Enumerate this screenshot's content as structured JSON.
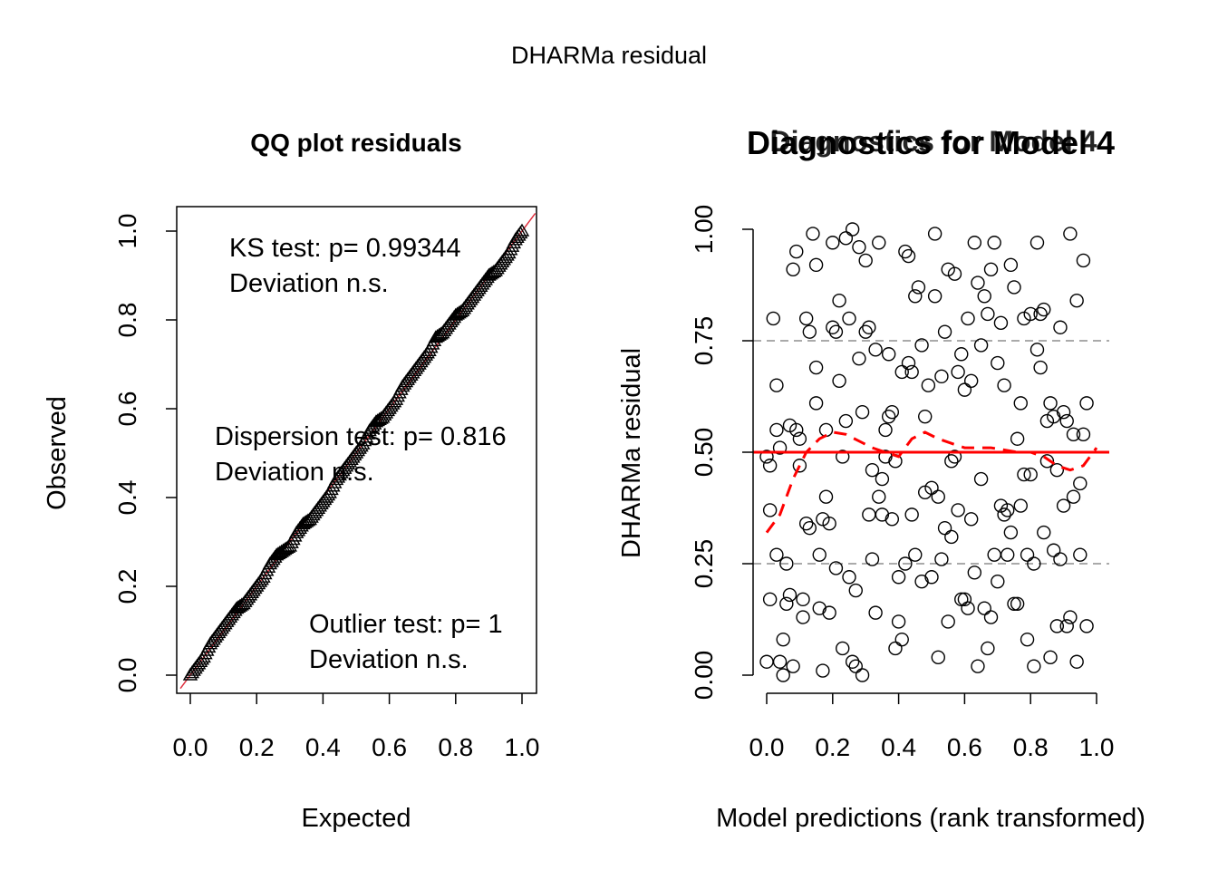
{
  "suptitle": "DHARMa residual",
  "chart_data": [
    {
      "type": "scatter",
      "panel": "qq",
      "title": "QQ plot residuals",
      "xlabel": "Expected",
      "ylabel": "Observed",
      "xlim": [
        0,
        1
      ],
      "ylim": [
        0,
        1
      ],
      "x_ticks": [
        "0.0",
        "0.2",
        "0.4",
        "0.6",
        "0.8",
        "1.0"
      ],
      "y_ticks": [
        "0.0",
        "0.2",
        "0.4",
        "0.6",
        "0.8",
        "1.0"
      ],
      "series": [
        {
          "marker": "triangle",
          "x": [
            0.0,
            0.02,
            0.04,
            0.06,
            0.08,
            0.1,
            0.12,
            0.14,
            0.16,
            0.18,
            0.2,
            0.22,
            0.24,
            0.26,
            0.28,
            0.3,
            0.32,
            0.34,
            0.36,
            0.38,
            0.4,
            0.42,
            0.44,
            0.46,
            0.48,
            0.5,
            0.52,
            0.54,
            0.56,
            0.58,
            0.6,
            0.62,
            0.64,
            0.66,
            0.68,
            0.7,
            0.72,
            0.74,
            0.76,
            0.78,
            0.8,
            0.82,
            0.84,
            0.86,
            0.88,
            0.9,
            0.92,
            0.94,
            0.96,
            0.98,
            1.0
          ],
          "y": [
            0.0,
            0.02,
            0.04,
            0.07,
            0.09,
            0.11,
            0.13,
            0.15,
            0.16,
            0.18,
            0.2,
            0.22,
            0.25,
            0.27,
            0.28,
            0.29,
            0.32,
            0.34,
            0.35,
            0.37,
            0.39,
            0.41,
            0.44,
            0.46,
            0.48,
            0.5,
            0.52,
            0.55,
            0.57,
            0.58,
            0.6,
            0.62,
            0.65,
            0.67,
            0.69,
            0.71,
            0.73,
            0.76,
            0.77,
            0.79,
            0.81,
            0.82,
            0.84,
            0.86,
            0.88,
            0.9,
            0.91,
            0.93,
            0.95,
            0.98,
            1.0
          ]
        }
      ],
      "reference_line": {
        "label": "",
        "color": "#e0303f"
      },
      "annotations": [
        {
          "line1": "KS test: p= 0.99344",
          "line2": "Deviation  n.s."
        },
        {
          "line1": "Dispersion test: p= 0.816",
          "line2": "Deviation  n.s."
        },
        {
          "line1": "Outlier test: p= 1",
          "line2": "Deviation  n.s."
        }
      ]
    },
    {
      "type": "scatter",
      "panel": "residuals",
      "title": "Diagnostics for Model 4",
      "overlay_title": "Diagnostics for Model 4",
      "xlabel": "Model predictions (rank transformed)",
      "ylabel": "DHARMa residual",
      "xlim": [
        0,
        1
      ],
      "ylim": [
        0,
        1
      ],
      "x_ticks": [
        "0.0",
        "0.2",
        "0.4",
        "0.6",
        "0.8",
        "1.0"
      ],
      "y_ticks": [
        "0.00",
        "0.25",
        "0.50",
        "0.75",
        "1.00"
      ],
      "hlines": [
        0.25,
        0.5,
        0.75
      ],
      "series": [
        {
          "marker": "circle",
          "points": [
            [
              0.0,
              0.03
            ],
            [
              0.0,
              0.49
            ],
            [
              0.01,
              0.37
            ],
            [
              0.01,
              0.17
            ],
            [
              0.01,
              0.47
            ],
            [
              0.02,
              0.8
            ],
            [
              0.03,
              0.65
            ],
            [
              0.03,
              0.55
            ],
            [
              0.03,
              0.27
            ],
            [
              0.04,
              0.03
            ],
            [
              0.04,
              0.51
            ],
            [
              0.05,
              0.0
            ],
            [
              0.05,
              0.08
            ],
            [
              0.06,
              0.25
            ],
            [
              0.06,
              0.16
            ],
            [
              0.07,
              0.56
            ],
            [
              0.07,
              0.18
            ],
            [
              0.08,
              0.91
            ],
            [
              0.08,
              0.02
            ],
            [
              0.09,
              0.95
            ],
            [
              0.09,
              0.55
            ],
            [
              0.1,
              0.53
            ],
            [
              0.1,
              0.47
            ],
            [
              0.11,
              0.13
            ],
            [
              0.11,
              0.17
            ],
            [
              0.12,
              0.8
            ],
            [
              0.12,
              0.34
            ],
            [
              0.13,
              0.33
            ],
            [
              0.13,
              0.77
            ],
            [
              0.14,
              0.99
            ],
            [
              0.15,
              0.92
            ],
            [
              0.15,
              0.69
            ],
            [
              0.15,
              0.61
            ],
            [
              0.16,
              0.27
            ],
            [
              0.16,
              0.15
            ],
            [
              0.17,
              0.35
            ],
            [
              0.17,
              0.01
            ],
            [
              0.18,
              0.4
            ],
            [
              0.18,
              0.55
            ],
            [
              0.19,
              0.34
            ],
            [
              0.19,
              0.14
            ],
            [
              0.2,
              0.78
            ],
            [
              0.2,
              0.97
            ],
            [
              0.21,
              0.77
            ],
            [
              0.21,
              0.24
            ],
            [
              0.22,
              0.84
            ],
            [
              0.22,
              0.66
            ],
            [
              0.23,
              0.49
            ],
            [
              0.23,
              0.06
            ],
            [
              0.24,
              0.57
            ],
            [
              0.24,
              0.98
            ],
            [
              0.25,
              0.8
            ],
            [
              0.25,
              0.22
            ],
            [
              0.26,
              0.03
            ],
            [
              0.26,
              1.0
            ],
            [
              0.27,
              0.02
            ],
            [
              0.27,
              0.19
            ],
            [
              0.28,
              0.71
            ],
            [
              0.28,
              0.96
            ],
            [
              0.29,
              0.59
            ],
            [
              0.29,
              0.0
            ],
            [
              0.3,
              0.77
            ],
            [
              0.3,
              0.93
            ],
            [
              0.31,
              0.36
            ],
            [
              0.31,
              0.78
            ],
            [
              0.32,
              0.46
            ],
            [
              0.32,
              0.26
            ],
            [
              0.33,
              0.73
            ],
            [
              0.33,
              0.14
            ],
            [
              0.34,
              0.97
            ],
            [
              0.34,
              0.4
            ],
            [
              0.35,
              0.36
            ],
            [
              0.35,
              0.44
            ],
            [
              0.36,
              0.49
            ],
            [
              0.36,
              0.55
            ],
            [
              0.37,
              0.72
            ],
            [
              0.37,
              0.58
            ],
            [
              0.38,
              0.35
            ],
            [
              0.38,
              0.59
            ],
            [
              0.39,
              0.48
            ],
            [
              0.39,
              0.06
            ],
            [
              0.4,
              0.12
            ],
            [
              0.4,
              0.22
            ],
            [
              0.41,
              0.68
            ],
            [
              0.41,
              0.08
            ],
            [
              0.42,
              0.25
            ],
            [
              0.42,
              0.95
            ],
            [
              0.43,
              0.94
            ],
            [
              0.43,
              0.7
            ],
            [
              0.44,
              0.36
            ],
            [
              0.44,
              0.68
            ],
            [
              0.45,
              0.85
            ],
            [
              0.45,
              0.27
            ],
            [
              0.46,
              0.87
            ],
            [
              0.47,
              0.21
            ],
            [
              0.47,
              0.74
            ],
            [
              0.48,
              0.58
            ],
            [
              0.48,
              0.41
            ],
            [
              0.49,
              0.65
            ],
            [
              0.5,
              0.42
            ],
            [
              0.5,
              0.22
            ],
            [
              0.51,
              0.99
            ],
            [
              0.51,
              0.85
            ],
            [
              0.52,
              0.04
            ],
            [
              0.52,
              0.4
            ],
            [
              0.53,
              0.67
            ],
            [
              0.53,
              0.26
            ],
            [
              0.54,
              0.33
            ],
            [
              0.54,
              0.77
            ],
            [
              0.55,
              0.91
            ],
            [
              0.55,
              0.12
            ],
            [
              0.56,
              0.31
            ],
            [
              0.56,
              0.48
            ],
            [
              0.57,
              0.9
            ],
            [
              0.57,
              0.49
            ],
            [
              0.58,
              0.37
            ],
            [
              0.58,
              0.68
            ],
            [
              0.59,
              0.72
            ],
            [
              0.59,
              0.17
            ],
            [
              0.6,
              0.17
            ],
            [
              0.6,
              0.64
            ],
            [
              0.61,
              0.8
            ],
            [
              0.61,
              0.15
            ],
            [
              0.62,
              0.66
            ],
            [
              0.62,
              0.35
            ],
            [
              0.63,
              0.97
            ],
            [
              0.63,
              0.23
            ],
            [
              0.64,
              0.88
            ],
            [
              0.64,
              0.02
            ],
            [
              0.65,
              0.74
            ],
            [
              0.65,
              0.44
            ],
            [
              0.66,
              0.85
            ],
            [
              0.66,
              0.15
            ],
            [
              0.67,
              0.81
            ],
            [
              0.67,
              0.06
            ],
            [
              0.68,
              0.91
            ],
            [
              0.68,
              0.13
            ],
            [
              0.69,
              0.27
            ],
            [
              0.69,
              0.97
            ],
            [
              0.7,
              0.21
            ],
            [
              0.7,
              0.7
            ],
            [
              0.71,
              0.79
            ],
            [
              0.71,
              0.38
            ],
            [
              0.72,
              0.36
            ],
            [
              0.72,
              0.65
            ],
            [
              0.73,
              0.37
            ],
            [
              0.73,
              0.27
            ],
            [
              0.74,
              0.92
            ],
            [
              0.74,
              0.32
            ],
            [
              0.75,
              0.16
            ],
            [
              0.75,
              0.87
            ],
            [
              0.76,
              0.53
            ],
            [
              0.76,
              0.16
            ],
            [
              0.77,
              0.61
            ],
            [
              0.77,
              0.38
            ],
            [
              0.78,
              0.8
            ],
            [
              0.78,
              0.45
            ],
            [
              0.79,
              0.27
            ],
            [
              0.79,
              0.08
            ],
            [
              0.8,
              0.81
            ],
            [
              0.8,
              0.45
            ],
            [
              0.81,
              0.25
            ],
            [
              0.81,
              0.02
            ],
            [
              0.82,
              0.73
            ],
            [
              0.82,
              0.97
            ],
            [
              0.83,
              0.69
            ],
            [
              0.83,
              0.81
            ],
            [
              0.84,
              0.82
            ],
            [
              0.84,
              0.32
            ],
            [
              0.85,
              0.57
            ],
            [
              0.85,
              0.48
            ],
            [
              0.86,
              0.61
            ],
            [
              0.86,
              0.04
            ],
            [
              0.87,
              0.58
            ],
            [
              0.87,
              0.28
            ],
            [
              0.88,
              0.46
            ],
            [
              0.88,
              0.11
            ],
            [
              0.89,
              0.78
            ],
            [
              0.89,
              0.26
            ],
            [
              0.9,
              0.59
            ],
            [
              0.9,
              0.38
            ],
            [
              0.91,
              0.57
            ],
            [
              0.91,
              0.11
            ],
            [
              0.92,
              0.99
            ],
            [
              0.92,
              0.13
            ],
            [
              0.93,
              0.4
            ],
            [
              0.93,
              0.54
            ],
            [
              0.94,
              0.84
            ],
            [
              0.94,
              0.03
            ],
            [
              0.95,
              0.27
            ],
            [
              0.95,
              0.43
            ],
            [
              0.96,
              0.54
            ],
            [
              0.96,
              0.93
            ],
            [
              0.97,
              0.61
            ],
            [
              0.97,
              0.11
            ]
          ]
        }
      ],
      "smooth_line": {
        "color": "#ff0000",
        "style": "dashed",
        "x": [
          0.0,
          0.04,
          0.08,
          0.12,
          0.16,
          0.2,
          0.24,
          0.28,
          0.32,
          0.36,
          0.4,
          0.44,
          0.48,
          0.52,
          0.56,
          0.6,
          0.64,
          0.68,
          0.72,
          0.76,
          0.8,
          0.84,
          0.88,
          0.92,
          0.96,
          1.0
        ],
        "y": [
          0.32,
          0.36,
          0.44,
          0.5,
          0.53,
          0.545,
          0.54,
          0.525,
          0.51,
          0.5,
          0.49,
          0.53,
          0.545,
          0.53,
          0.52,
          0.51,
          0.51,
          0.51,
          0.505,
          0.5,
          0.5,
          0.49,
          0.47,
          0.46,
          0.47,
          0.51
        ]
      },
      "reference_line": {
        "value": 0.5,
        "color": "#ff0000"
      }
    }
  ]
}
